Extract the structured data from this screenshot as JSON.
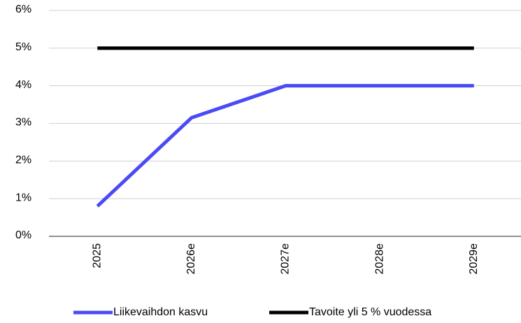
{
  "chart_data": {
    "type": "line",
    "categories": [
      "2025",
      "2026e",
      "2027e",
      "2028e",
      "2029e"
    ],
    "series": [
      {
        "name": "Liikevaihdon kasvu",
        "color": "#4b4bf5",
        "values": [
          0.8,
          3.15,
          4,
          4,
          4
        ]
      },
      {
        "name": "Tavoite yli 5 % vuodessa",
        "color": "#000000",
        "values": [
          5,
          5,
          5,
          5,
          5
        ]
      }
    ],
    "ylim": [
      0,
      6
    ],
    "yticks": [
      {
        "value": 0,
        "label": "0%"
      },
      {
        "value": 1,
        "label": "1%"
      },
      {
        "value": 2,
        "label": "2%"
      },
      {
        "value": 3,
        "label": "3%"
      },
      {
        "value": 4,
        "label": "4%"
      },
      {
        "value": 5,
        "label": "5%"
      },
      {
        "value": 6,
        "label": "6%"
      }
    ],
    "grid": true,
    "legend": "bottom"
  }
}
